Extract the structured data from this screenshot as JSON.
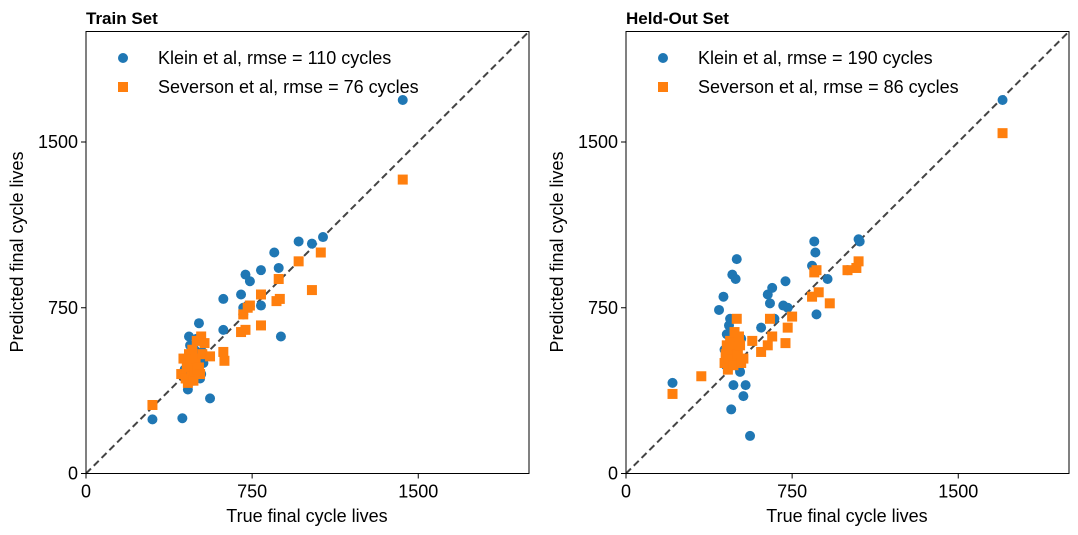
{
  "colors": {
    "klein": "#1f77b4",
    "severson": "#ff7f0e",
    "diagonal": "#444444"
  },
  "chart_data": [
    {
      "type": "scatter",
      "title": "Train Set",
      "xlabel": "True final cycle lives",
      "ylabel": "Predicted final cycle lives",
      "xlim": [
        0,
        2000
      ],
      "ylim": [
        0,
        2000
      ],
      "xticks": [
        0,
        750,
        1500
      ],
      "yticks": [
        0,
        750,
        1500
      ],
      "grid": false,
      "legend_position": "top-left",
      "diagonal": true,
      "series": [
        {
          "name": "Klein et al, rmse = 110 cycles",
          "marker": "circle",
          "color": "#1f77b4",
          "points": [
            [
              300,
              245
            ],
            [
              435,
              250
            ],
            [
              445,
              470
            ],
            [
              455,
              450
            ],
            [
              460,
              380
            ],
            [
              465,
              620
            ],
            [
              470,
              580
            ],
            [
              475,
              500
            ],
            [
              480,
              540
            ],
            [
              485,
              420
            ],
            [
              490,
              560
            ],
            [
              495,
              480
            ],
            [
              500,
              610
            ],
            [
              505,
              445
            ],
            [
              510,
              680
            ],
            [
              515,
              430
            ],
            [
              520,
              450
            ],
            [
              525,
              550
            ],
            [
              530,
              500
            ],
            [
              560,
              340
            ],
            [
              620,
              790
            ],
            [
              620,
              650
            ],
            [
              700,
              810
            ],
            [
              710,
              750
            ],
            [
              710,
              720
            ],
            [
              720,
              900
            ],
            [
              730,
              760
            ],
            [
              740,
              870
            ],
            [
              790,
              920
            ],
            [
              790,
              760
            ],
            [
              850,
              1000
            ],
            [
              870,
              930
            ],
            [
              880,
              620
            ],
            [
              960,
              1050
            ],
            [
              1020,
              1040
            ],
            [
              1070,
              1070
            ],
            [
              1430,
              1690
            ]
          ]
        },
        {
          "name": "Severson et al, rmse = 76 cycles",
          "marker": "square",
          "color": "#ff7f0e",
          "points": [
            [
              300,
              310
            ],
            [
              430,
              450
            ],
            [
              440,
              520
            ],
            [
              450,
              430
            ],
            [
              455,
              480
            ],
            [
              460,
              410
            ],
            [
              465,
              540
            ],
            [
              470,
              500
            ],
            [
              475,
              440
            ],
            [
              480,
              560
            ],
            [
              485,
              420
            ],
            [
              490,
              460
            ],
            [
              495,
              520
            ],
            [
              500,
              600
            ],
            [
              505,
              470
            ],
            [
              510,
              480
            ],
            [
              515,
              450
            ],
            [
              520,
              620
            ],
            [
              525,
              540
            ],
            [
              535,
              590
            ],
            [
              560,
              530
            ],
            [
              620,
              550
            ],
            [
              625,
              510
            ],
            [
              700,
              640
            ],
            [
              710,
              720
            ],
            [
              720,
              650
            ],
            [
              730,
              750
            ],
            [
              740,
              760
            ],
            [
              790,
              670
            ],
            [
              790,
              810
            ],
            [
              860,
              780
            ],
            [
              870,
              880
            ],
            [
              875,
              790
            ],
            [
              960,
              960
            ],
            [
              1020,
              830
            ],
            [
              1060,
              1000
            ],
            [
              1430,
              1330
            ]
          ]
        }
      ]
    },
    {
      "type": "scatter",
      "title": "Held-Out Set",
      "xlabel": "True final cycle lives",
      "ylabel": "Predicted final cycle lives",
      "xlim": [
        0,
        2000
      ],
      "ylim": [
        0,
        2000
      ],
      "xticks": [
        0,
        750,
        1500
      ],
      "yticks": [
        0,
        750,
        1500
      ],
      "grid": false,
      "legend_position": "top-left",
      "diagonal": true,
      "series": [
        {
          "name": "Klein et al, rmse = 190 cycles",
          "marker": "circle",
          "color": "#1f77b4",
          "points": [
            [
              210,
              410
            ],
            [
              420,
              740
            ],
            [
              440,
              800
            ],
            [
              445,
              560
            ],
            [
              450,
              490
            ],
            [
              455,
              630
            ],
            [
              460,
              580
            ],
            [
              465,
              670
            ],
            [
              470,
              700
            ],
            [
              475,
              290
            ],
            [
              480,
              900
            ],
            [
              485,
              400
            ],
            [
              490,
              550
            ],
            [
              495,
              880
            ],
            [
              500,
              970
            ],
            [
              505,
              520
            ],
            [
              510,
              480
            ],
            [
              515,
              460
            ],
            [
              520,
              610
            ],
            [
              530,
              350
            ],
            [
              540,
              400
            ],
            [
              560,
              170
            ],
            [
              610,
              660
            ],
            [
              640,
              810
            ],
            [
              650,
              770
            ],
            [
              660,
              840
            ],
            [
              670,
              700
            ],
            [
              710,
              760
            ],
            [
              720,
              870
            ],
            [
              730,
              750
            ],
            [
              840,
              940
            ],
            [
              850,
              1050
            ],
            [
              855,
              1000
            ],
            [
              860,
              720
            ],
            [
              910,
              880
            ],
            [
              1000,
              920
            ],
            [
              1050,
              1060
            ],
            [
              1055,
              1050
            ],
            [
              1700,
              1690
            ]
          ]
        },
        {
          "name": "Severson et al, rmse = 86 cycles",
          "marker": "square",
          "color": "#ff7f0e",
          "points": [
            [
              210,
              360
            ],
            [
              340,
              440
            ],
            [
              445,
              500
            ],
            [
              450,
              540
            ],
            [
              455,
              580
            ],
            [
              460,
              470
            ],
            [
              465,
              520
            ],
            [
              470,
              600
            ],
            [
              475,
              560
            ],
            [
              480,
              510
            ],
            [
              485,
              490
            ],
            [
              490,
              640
            ],
            [
              495,
              580
            ],
            [
              500,
              700
            ],
            [
              505,
              540
            ],
            [
              510,
              620
            ],
            [
              515,
              580
            ],
            [
              520,
              500
            ],
            [
              530,
              520
            ],
            [
              570,
              600
            ],
            [
              610,
              550
            ],
            [
              640,
              580
            ],
            [
              650,
              700
            ],
            [
              660,
              620
            ],
            [
              720,
              590
            ],
            [
              730,
              660
            ],
            [
              750,
              710
            ],
            [
              840,
              800
            ],
            [
              850,
              910
            ],
            [
              860,
              920
            ],
            [
              870,
              820
            ],
            [
              920,
              770
            ],
            [
              1000,
              920
            ],
            [
              1040,
              930
            ],
            [
              1050,
              960
            ],
            [
              1700,
              1540
            ]
          ]
        }
      ]
    }
  ]
}
